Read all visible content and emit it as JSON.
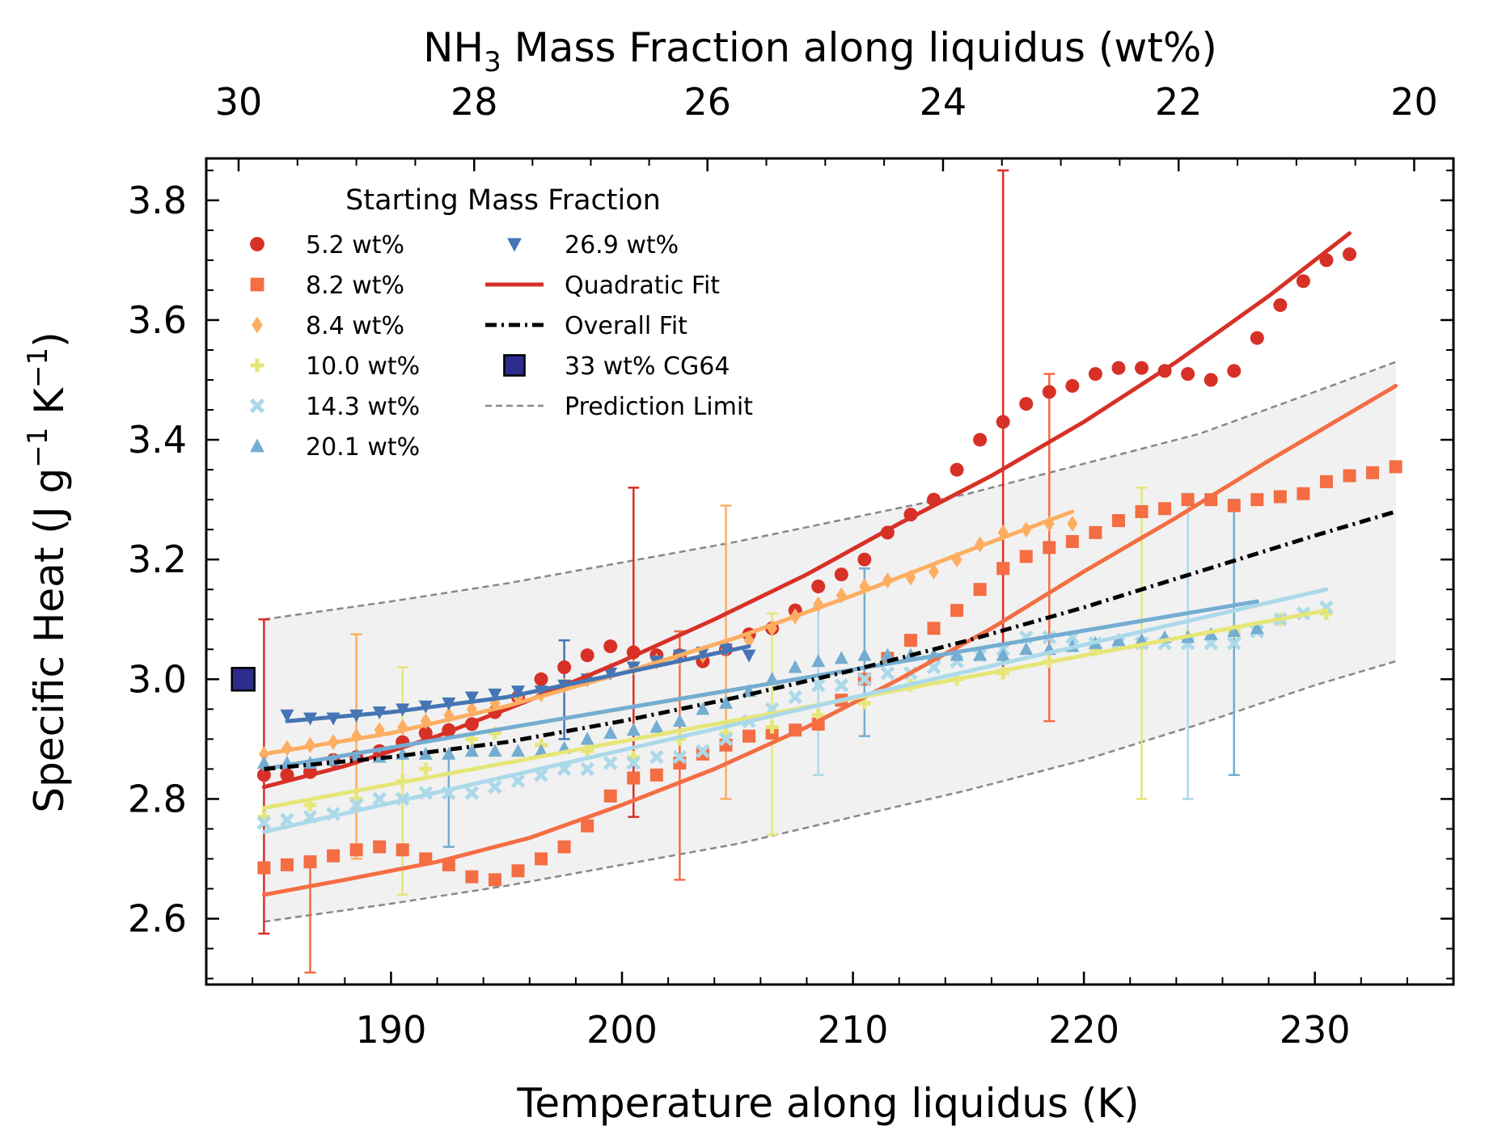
{
  "chart_data": {
    "type": "scatter",
    "xlabel": "Temperature along liquidus (K)",
    "ylabel_parts": [
      "Specific Heat (J g",
      "−1",
      " K",
      "−1",
      ")"
    ],
    "top_xlabel_parts": [
      "NH",
      "3",
      " Mass Fraction along liquidus (wt%)"
    ],
    "xlim": [
      182,
      236
    ],
    "ylim": [
      2.49,
      3.87
    ],
    "x_ticks": [
      190,
      200,
      210,
      220,
      230
    ],
    "y_ticks": [
      2.6,
      2.8,
      3.0,
      3.2,
      3.4,
      3.6,
      3.8
    ],
    "top_ticks": [
      {
        "label": "30",
        "T": 183.4
      },
      {
        "label": "28",
        "T": 193.6
      },
      {
        "label": "26",
        "T": 203.7
      },
      {
        "label": "24",
        "T": 213.9
      },
      {
        "label": "22",
        "T": 224.1
      },
      {
        "label": "20",
        "T": 234.3
      }
    ],
    "grid": false,
    "legend": {
      "title": "Starting Mass Fraction",
      "position": "top-left",
      "entries": [
        {
          "label": "5.2 wt%",
          "marker": "circle",
          "color": "#d73027"
        },
        {
          "label": "8.2 wt%",
          "marker": "square",
          "color": "#f46d43"
        },
        {
          "label": "8.4 wt%",
          "marker": "diamond",
          "color": "#fdae61"
        },
        {
          "label": "10.0 wt%",
          "marker": "plus",
          "color": "#e6e678"
        },
        {
          "label": "14.3 wt%",
          "marker": "x",
          "color": "#abd9e9"
        },
        {
          "label": "20.1 wt%",
          "marker": "triangle",
          "color": "#74add1"
        },
        {
          "label": "26.9 wt%",
          "marker": "triangle-down",
          "color": "#4575b4"
        },
        {
          "label": "Quadratic Fit",
          "marker": "line",
          "color": "#d73027"
        },
        {
          "label": "Overall Fit",
          "marker": "dashdot",
          "color": "#000000"
        },
        {
          "label": "33 wt% CG64",
          "marker": "big-square",
          "color": "#2c2c8c"
        },
        {
          "label": "Prediction Limit",
          "marker": "dashed",
          "color": "#888888"
        }
      ]
    },
    "prediction_band": {
      "x": [
        184.5,
        190,
        195,
        200,
        205,
        210,
        215,
        220,
        225,
        230,
        233.5
      ],
      "upper": [
        3.1,
        3.13,
        3.16,
        3.195,
        3.23,
        3.27,
        3.31,
        3.36,
        3.41,
        3.48,
        3.53
      ],
      "lower": [
        2.595,
        2.625,
        2.655,
        2.69,
        2.725,
        2.77,
        2.815,
        2.865,
        2.925,
        2.99,
        3.03
      ]
    },
    "overall_fit": {
      "x": [
        184.5,
        190,
        195,
        200,
        205,
        210,
        215,
        220,
        225,
        230,
        233.5
      ],
      "y": [
        2.85,
        2.87,
        2.895,
        2.93,
        2.97,
        3.015,
        3.065,
        3.12,
        3.18,
        3.24,
        3.28
      ]
    },
    "cg64": {
      "x": 183.6,
      "y": 3.0
    },
    "series": [
      {
        "name": "5.2 wt%",
        "marker": "circle",
        "color": "#d73027",
        "x": [
          184.5,
          185.5,
          186.5,
          187.5,
          188.5,
          189.5,
          190.5,
          191.5,
          192.5,
          193.5,
          194.5,
          195.5,
          196.5,
          197.5,
          198.5,
          199.5,
          200.5,
          201.5,
          202.5,
          203.5,
          204.5,
          205.5,
          206.5,
          207.5,
          208.5,
          209.5,
          210.5,
          211.5,
          212.5,
          213.5,
          214.5,
          215.5,
          216.5,
          217.5,
          218.5,
          219.5,
          220.5,
          221.5,
          222.5,
          223.5,
          224.5,
          225.5,
          226.5,
          227.5,
          228.5,
          229.5,
          230.5,
          231.5
        ],
        "y": [
          2.84,
          2.84,
          2.845,
          2.865,
          2.87,
          2.88,
          2.895,
          2.91,
          2.915,
          2.925,
          2.945,
          2.97,
          3.0,
          3.02,
          3.04,
          3.055,
          3.045,
          3.04,
          3.04,
          3.03,
          3.05,
          3.075,
          3.085,
          3.115,
          3.155,
          3.175,
          3.2,
          3.245,
          3.275,
          3.3,
          3.35,
          3.4,
          3.43,
          3.46,
          3.48,
          3.49,
          3.51,
          3.52,
          3.52,
          3.515,
          3.51,
          3.5,
          3.515,
          3.57,
          3.625,
          3.665,
          3.7,
          3.71
        ],
        "fit_x": [
          184.5,
          188,
          192,
          196,
          200,
          204,
          208,
          212,
          216,
          220,
          224,
          228,
          231.5
        ],
        "fit_y": [
          2.82,
          2.855,
          2.905,
          2.965,
          3.03,
          3.1,
          3.175,
          3.26,
          3.34,
          3.43,
          3.53,
          3.64,
          3.745
        ],
        "errorbars": [
          {
            "x": 184.5,
            "y": 2.84,
            "lo": 2.575,
            "hi": 3.1
          },
          {
            "x": 200.5,
            "y": 3.045,
            "lo": 2.77,
            "hi": 3.32
          },
          {
            "x": 216.5,
            "y": 3.43,
            "lo": 3.015,
            "hi": 3.85
          }
        ]
      },
      {
        "name": "8.2 wt%",
        "marker": "square",
        "color": "#f46d43",
        "x": [
          184.5,
          185.5,
          186.5,
          187.5,
          188.5,
          189.5,
          190.5,
          191.5,
          192.5,
          193.5,
          194.5,
          195.5,
          196.5,
          197.5,
          198.5,
          199.5,
          200.5,
          201.5,
          202.5,
          203.5,
          204.5,
          205.5,
          206.5,
          207.5,
          208.5,
          209.5,
          210.5,
          211.5,
          212.5,
          213.5,
          214.5,
          215.5,
          216.5,
          217.5,
          218.5,
          219.5,
          220.5,
          221.5,
          222.5,
          223.5,
          224.5,
          225.5,
          226.5,
          227.5,
          228.5,
          229.5,
          230.5,
          231.5,
          232.5,
          233.5
        ],
        "y": [
          2.685,
          2.69,
          2.695,
          2.705,
          2.715,
          2.72,
          2.715,
          2.7,
          2.69,
          2.67,
          2.665,
          2.68,
          2.7,
          2.72,
          2.755,
          2.805,
          2.835,
          2.84,
          2.86,
          2.875,
          2.89,
          2.905,
          2.91,
          2.915,
          2.925,
          2.965,
          3.0,
          3.035,
          3.065,
          3.085,
          3.115,
          3.15,
          3.185,
          3.205,
          3.22,
          3.23,
          3.245,
          3.265,
          3.28,
          3.285,
          3.3,
          3.3,
          3.29,
          3.3,
          3.305,
          3.31,
          3.33,
          3.34,
          3.345,
          3.355
        ],
        "fit_x": [
          184.5,
          188,
          192,
          196,
          200,
          204,
          208,
          212,
          216,
          220,
          224,
          228,
          233.5
        ],
        "fit_y": [
          2.64,
          2.665,
          2.695,
          2.735,
          2.79,
          2.85,
          2.92,
          3.0,
          3.085,
          3.18,
          3.27,
          3.365,
          3.49
        ],
        "errorbars": [
          {
            "x": 186.5,
            "y": 2.695,
            "lo": 2.51,
            "hi": 2.7
          },
          {
            "x": 202.5,
            "y": 2.86,
            "lo": 2.665,
            "hi": 3.08
          },
          {
            "x": 218.5,
            "y": 3.22,
            "lo": 2.93,
            "hi": 3.51
          }
        ]
      },
      {
        "name": "8.4 wt%",
        "marker": "diamond",
        "color": "#fdae61",
        "x": [
          184.5,
          185.5,
          186.5,
          187.5,
          188.5,
          189.5,
          190.5,
          191.5,
          192.5,
          193.5,
          194.5,
          195.5,
          196.5,
          197.5,
          198.5,
          199.5,
          200.5,
          201.5,
          202.5,
          203.5,
          204.5,
          205.5,
          206.5,
          207.5,
          208.5,
          209.5,
          210.5,
          211.5,
          212.5,
          213.5,
          214.5,
          215.5,
          216.5,
          217.5,
          218.5,
          219.5
        ],
        "y": [
          2.875,
          2.885,
          2.89,
          2.895,
          2.905,
          2.915,
          2.92,
          2.93,
          2.94,
          2.95,
          2.96,
          2.97,
          2.975,
          2.99,
          3.0,
          3.015,
          3.02,
          3.03,
          3.035,
          3.04,
          3.05,
          3.065,
          3.085,
          3.105,
          3.125,
          3.14,
          3.155,
          3.165,
          3.17,
          3.18,
          3.2,
          3.225,
          3.245,
          3.25,
          3.26,
          3.26
        ],
        "fit_x": [
          184.5,
          190,
          195,
          200,
          205,
          210,
          215,
          219.5
        ],
        "fit_y": [
          2.875,
          2.91,
          2.955,
          3.01,
          3.07,
          3.14,
          3.215,
          3.28
        ],
        "errorbars": [
          {
            "x": 188.5,
            "y": 2.905,
            "lo": 2.7,
            "hi": 3.075
          },
          {
            "x": 204.5,
            "y": 3.05,
            "lo": 2.8,
            "hi": 3.29
          }
        ]
      },
      {
        "name": "10.0 wt%",
        "marker": "plus",
        "color": "#e6e678",
        "x": [
          184.5,
          186.5,
          188.5,
          190.5,
          191.5,
          193.5,
          194.5,
          196.5,
          198.5,
          200.5,
          202.5,
          204.5,
          206.5,
          208.5,
          210.5,
          212.5,
          214.5,
          216.5,
          218.5,
          220.5,
          222.5,
          224.5,
          226.5,
          228.5,
          230.5
        ],
        "y": [
          2.77,
          2.79,
          2.8,
          2.83,
          2.85,
          2.9,
          2.91,
          2.89,
          2.88,
          2.87,
          2.9,
          2.91,
          2.92,
          2.94,
          2.96,
          2.99,
          3.0,
          3.01,
          3.03,
          3.05,
          3.06,
          3.07,
          3.08,
          3.1,
          3.11
        ],
        "fit_x": [
          184.5,
          230.5
        ],
        "fit_y": [
          2.785,
          3.115
        ],
        "errorbars": [
          {
            "x": 190.5,
            "y": 2.83,
            "lo": 2.64,
            "hi": 3.02
          },
          {
            "x": 206.5,
            "y": 2.92,
            "lo": 2.74,
            "hi": 3.11
          },
          {
            "x": 222.5,
            "y": 3.06,
            "lo": 2.8,
            "hi": 3.32
          }
        ]
      },
      {
        "name": "14.3 wt%",
        "marker": "x",
        "color": "#abd9e9",
        "x": [
          184.5,
          185.5,
          186.5,
          187.5,
          188.5,
          189.5,
          190.5,
          191.5,
          192.5,
          193.5,
          194.5,
          195.5,
          196.5,
          197.5,
          198.5,
          199.5,
          200.5,
          201.5,
          202.5,
          203.5,
          204.5,
          205.5,
          206.5,
          207.5,
          208.5,
          209.5,
          210.5,
          211.5,
          212.5,
          213.5,
          214.5,
          215.5,
          216.5,
          217.5,
          218.5,
          219.5,
          220.5,
          221.5,
          222.5,
          223.5,
          224.5,
          225.5,
          226.5,
          227.5,
          228.5,
          229.5,
          230.5
        ],
        "y": [
          2.76,
          2.765,
          2.77,
          2.775,
          2.79,
          2.8,
          2.8,
          2.81,
          2.81,
          2.81,
          2.82,
          2.83,
          2.84,
          2.85,
          2.85,
          2.86,
          2.86,
          2.87,
          2.87,
          2.88,
          2.9,
          2.93,
          2.95,
          2.97,
          2.99,
          2.99,
          3.0,
          3.01,
          3.01,
          3.02,
          3.03,
          3.04,
          3.05,
          3.07,
          3.07,
          3.07,
          3.06,
          3.06,
          3.06,
          3.06,
          3.06,
          3.06,
          3.06,
          3.08,
          3.1,
          3.11,
          3.12
        ],
        "fit_x": [
          184.5,
          230.5
        ],
        "fit_y": [
          2.745,
          3.15
        ],
        "errorbars": [
          {
            "x": 208.5,
            "y": 2.99,
            "lo": 2.84,
            "hi": 3.12
          },
          {
            "x": 224.5,
            "y": 3.06,
            "lo": 2.8,
            "hi": 3.31
          }
        ]
      },
      {
        "name": "20.1 wt%",
        "marker": "triangle",
        "color": "#74add1",
        "x": [
          184.5,
          185.5,
          186.5,
          187.5,
          188.5,
          189.5,
          190.5,
          191.5,
          192.5,
          193.5,
          194.5,
          195.5,
          196.5,
          197.5,
          198.5,
          199.5,
          200.5,
          201.5,
          202.5,
          203.5,
          204.5,
          205.5,
          206.5,
          207.5,
          208.5,
          209.5,
          210.5,
          211.5,
          212.5,
          213.5,
          214.5,
          215.5,
          216.5,
          217.5,
          218.5,
          219.5,
          220.5,
          221.5,
          222.5,
          223.5,
          224.5,
          225.5,
          226.5,
          227.5
        ],
        "y": [
          2.86,
          2.86,
          2.86,
          2.865,
          2.87,
          2.87,
          2.875,
          2.875,
          2.875,
          2.88,
          2.88,
          2.88,
          2.88,
          2.885,
          2.9,
          2.91,
          2.915,
          2.92,
          2.93,
          2.95,
          2.96,
          2.98,
          3.0,
          3.02,
          3.03,
          3.035,
          3.04,
          3.04,
          3.04,
          3.04,
          3.04,
          3.04,
          3.04,
          3.05,
          3.05,
          3.055,
          3.06,
          3.065,
          3.065,
          3.07,
          3.07,
          3.075,
          3.08,
          3.085
        ],
        "fit_x": [
          184.5,
          227.5
        ],
        "fit_y": [
          2.85,
          3.13
        ],
        "errorbars": [
          {
            "x": 192.5,
            "y": 2.875,
            "lo": 2.72,
            "hi": 2.87
          },
          {
            "x": 210.5,
            "y": 3.04,
            "lo": 2.905,
            "hi": 3.185
          },
          {
            "x": 226.5,
            "y": 3.08,
            "lo": 2.84,
            "hi": 3.3
          }
        ]
      },
      {
        "name": "26.9 wt%",
        "marker": "triangle-down",
        "color": "#4575b4",
        "x": [
          185.5,
          186.5,
          187.5,
          188.5,
          189.5,
          190.5,
          191.5,
          192.5,
          193.5,
          194.5,
          195.5,
          196.5,
          197.5,
          198.5,
          199.5,
          200.5,
          201.5,
          202.5,
          203.5,
          204.5,
          205.5
        ],
        "y": [
          2.94,
          2.935,
          2.935,
          2.94,
          2.945,
          2.95,
          2.955,
          2.96,
          2.97,
          2.975,
          2.98,
          2.98,
          2.99,
          3.0,
          3.01,
          3.02,
          3.03,
          3.04,
          3.045,
          3.05,
          3.04
        ],
        "fit_x": [
          185.5,
          190,
          195,
          200,
          205.5
        ],
        "fit_y": [
          2.93,
          2.945,
          2.97,
          3.01,
          3.055
        ],
        "errorbars": [
          {
            "x": 197.5,
            "y": 2.99,
            "lo": 2.9,
            "hi": 3.065
          }
        ]
      }
    ]
  }
}
